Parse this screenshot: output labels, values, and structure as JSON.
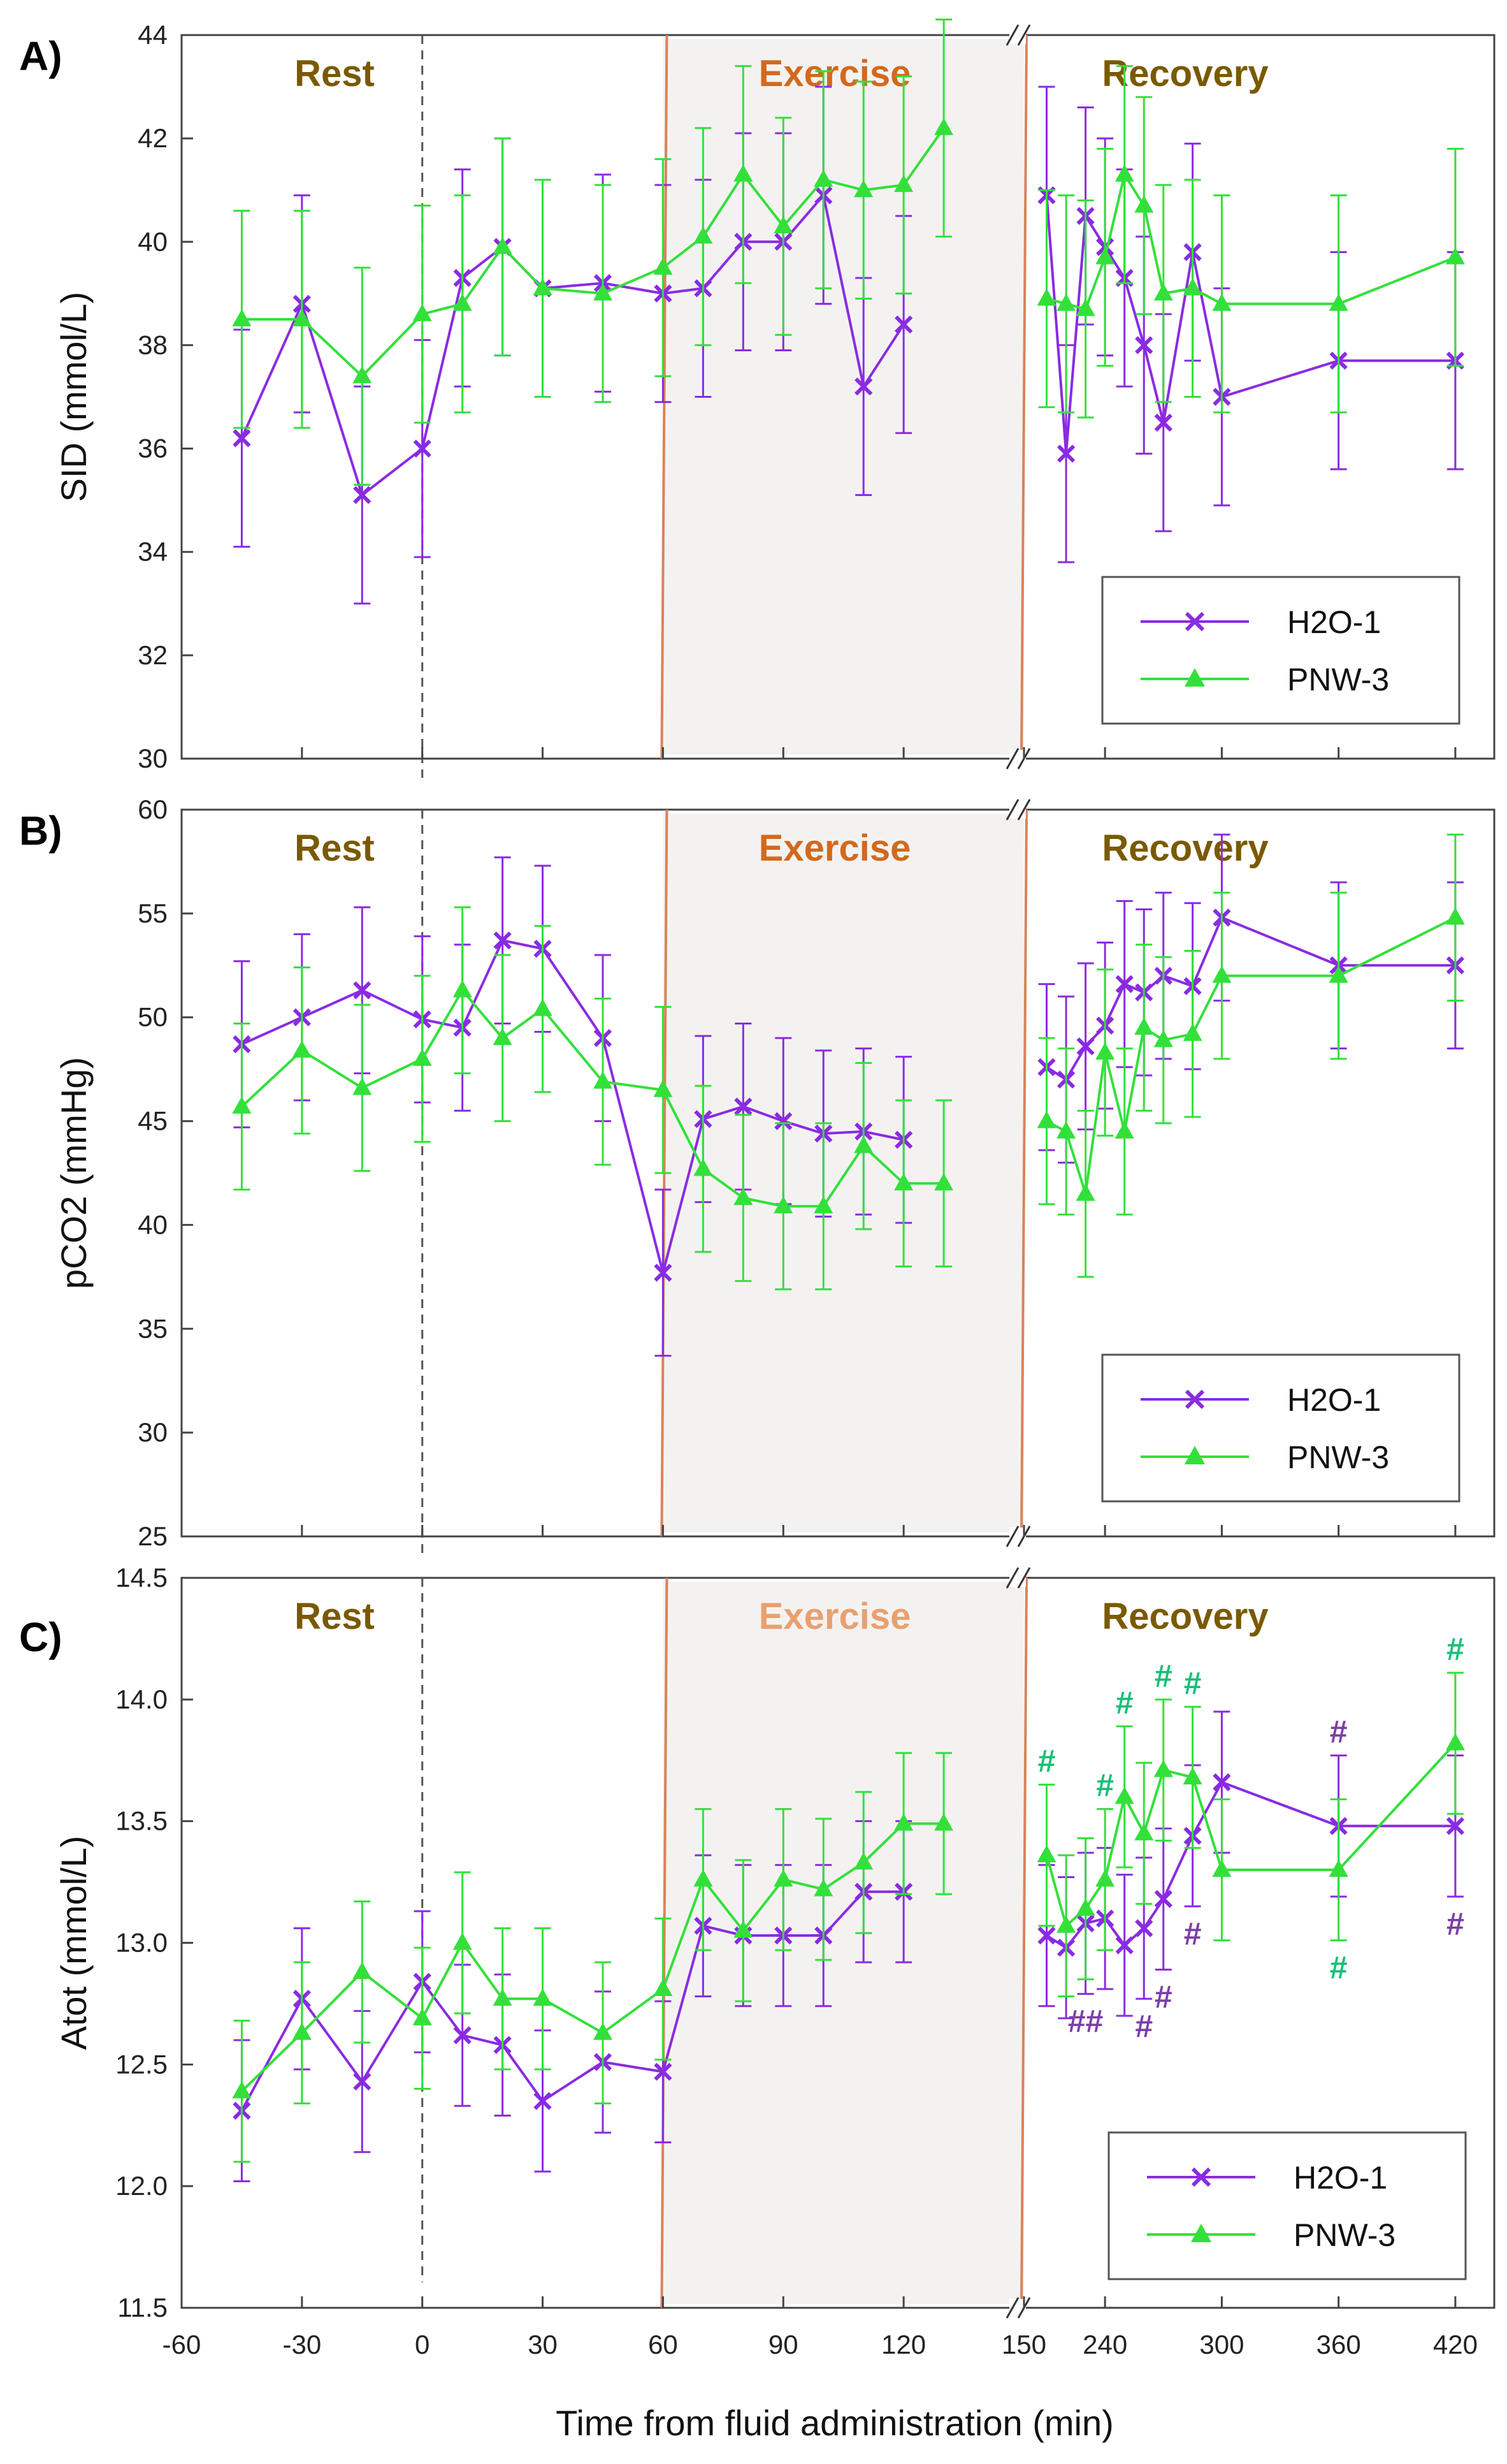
{
  "figure": {
    "xlabel": "Time from fluid administration (min)",
    "x_ticks": [
      "-60",
      "-30",
      "0",
      "30",
      "60",
      "90",
      "120",
      "150",
      "240",
      "300",
      "360",
      "420"
    ],
    "x_break_between": [
      150,
      240
    ]
  },
  "colors": {
    "h2o": "#8a2be2",
    "pnw": "#33e03a",
    "exercise_line": "#d9835a",
    "exercise_fill": "#f4f2f1",
    "rest_text": "#7a5a00",
    "exercise_text": "#d2691e",
    "exercise_text_c": "#e8a070",
    "recovery_text": "#7a5a00",
    "hash_pnw": "#1abf7a",
    "hash_h2o": "#7b3fa6"
  },
  "chart_data": [
    {
      "panel": "A)",
      "type": "line",
      "ylabel": "SID (mmol/L)",
      "ylim": [
        30,
        44
      ],
      "yticks": [
        "30",
        "32",
        "34",
        "36",
        "38",
        "40",
        "42",
        "44"
      ],
      "phases": [
        "Rest",
        "Exercise",
        "Recovery"
      ],
      "legend": {
        "position": "bottom-right",
        "entries": [
          "H2O-1",
          "PNW-3"
        ]
      },
      "series": [
        {
          "name": "H2O-1",
          "marker": "x",
          "x": [
            -45,
            -30,
            -15,
            0,
            10,
            20,
            30,
            45,
            60,
            70,
            80,
            90,
            100,
            110,
            120,
            210,
            220,
            230,
            240,
            250,
            260,
            270,
            285,
            300,
            360,
            420
          ],
          "y": [
            36.2,
            38.8,
            35.1,
            36.0,
            39.3,
            39.9,
            39.1,
            39.2,
            39.0,
            39.1,
            40.0,
            40.0,
            40.9,
            37.2,
            38.4,
            40.9,
            35.9,
            40.5,
            39.9,
            39.3,
            38.0,
            36.5,
            39.8,
            37.0,
            37.7,
            37.7
          ],
          "err": [
            2.1,
            2.1,
            2.1,
            2.1,
            2.1,
            2.1,
            2.1,
            2.1,
            2.1,
            2.1,
            2.1,
            2.1,
            2.1,
            2.1,
            2.1,
            2.1,
            2.1,
            2.1,
            2.1,
            2.1,
            2.1,
            2.1,
            2.1,
            2.1,
            2.1,
            2.1
          ]
        },
        {
          "name": "PNW-3",
          "marker": "triangle",
          "x": [
            -45,
            -30,
            -15,
            0,
            10,
            20,
            30,
            45,
            60,
            70,
            80,
            90,
            100,
            110,
            120,
            130,
            210,
            220,
            230,
            240,
            250,
            260,
            270,
            285,
            300,
            360,
            420
          ],
          "y": [
            38.5,
            38.5,
            37.4,
            38.6,
            38.8,
            39.9,
            39.1,
            39.0,
            39.5,
            40.1,
            41.3,
            40.3,
            41.2,
            41.0,
            41.1,
            42.2,
            38.9,
            38.8,
            38.7,
            39.7,
            41.3,
            40.7,
            39.0,
            39.1,
            38.8,
            38.8,
            39.7
          ],
          "err": [
            2.1,
            2.1,
            2.1,
            2.1,
            2.1,
            2.1,
            2.1,
            2.1,
            2.1,
            2.1,
            2.1,
            2.1,
            2.1,
            2.1,
            2.1,
            2.1,
            2.1,
            2.1,
            2.1,
            2.1,
            2.1,
            2.1,
            2.1,
            2.1,
            2.1,
            2.1,
            2.1
          ]
        }
      ]
    },
    {
      "panel": "B)",
      "type": "line",
      "ylabel": "pCO2 (mmHg)",
      "ylim": [
        25,
        60
      ],
      "yticks": [
        "25",
        "30",
        "35",
        "40",
        "45",
        "50",
        "55",
        "60"
      ],
      "phases": [
        "Rest",
        "Exercise",
        "Recovery"
      ],
      "legend": {
        "position": "bottom-right",
        "entries": [
          "H2O-1",
          "PNW-3"
        ]
      },
      "series": [
        {
          "name": "H2O-1",
          "marker": "x",
          "x": [
            -45,
            -30,
            -15,
            0,
            10,
            20,
            30,
            45,
            60,
            70,
            80,
            90,
            100,
            110,
            120,
            210,
            220,
            230,
            240,
            250,
            260,
            270,
            285,
            300,
            360,
            420
          ],
          "y": [
            48.7,
            50.0,
            51.3,
            49.9,
            49.5,
            53.7,
            53.3,
            49.0,
            37.7,
            45.1,
            45.7,
            45.0,
            44.4,
            44.5,
            44.1,
            47.6,
            47.0,
            48.6,
            49.6,
            51.6,
            51.2,
            52.0,
            51.5,
            54.8,
            52.5,
            52.5
          ],
          "err": [
            4.0,
            4.0,
            4.0,
            4.0,
            4.0,
            4.0,
            4.0,
            4.0,
            4.0,
            4.0,
            4.0,
            4.0,
            4.0,
            4.0,
            4.0,
            4.0,
            4.0,
            4.0,
            4.0,
            4.0,
            4.0,
            4.0,
            4.0,
            4.0,
            4.0,
            4.0
          ]
        },
        {
          "name": "PNW-3",
          "marker": "triangle",
          "x": [
            -45,
            -30,
            -15,
            0,
            10,
            20,
            30,
            45,
            60,
            70,
            80,
            90,
            100,
            110,
            120,
            130,
            210,
            220,
            230,
            240,
            250,
            260,
            270,
            285,
            300,
            360,
            420
          ],
          "y": [
            45.7,
            48.4,
            46.6,
            48.0,
            51.3,
            49.0,
            50.4,
            46.9,
            46.5,
            42.7,
            41.3,
            40.9,
            40.9,
            43.8,
            42.0,
            42.0,
            45.0,
            44.5,
            41.5,
            48.3,
            44.5,
            49.5,
            48.9,
            49.2,
            52.0,
            52.0,
            54.8
          ],
          "err": [
            4.0,
            4.0,
            4.0,
            4.0,
            4.0,
            4.0,
            4.0,
            4.0,
            4.0,
            4.0,
            4.0,
            4.0,
            4.0,
            4.0,
            4.0,
            4.0,
            4.0,
            4.0,
            4.0,
            4.0,
            4.0,
            4.0,
            4.0,
            4.0,
            4.0,
            4.0,
            4.0
          ]
        }
      ]
    },
    {
      "panel": "C)",
      "type": "line",
      "ylabel": "Atot (mmol/L)",
      "ylim": [
        11.5,
        14.5
      ],
      "yticks": [
        "11.5",
        "12.0",
        "12.5",
        "13.0",
        "13.5",
        "14.0",
        "14.5"
      ],
      "phases": [
        "Rest",
        "Exercise",
        "Recovery"
      ],
      "legend": {
        "position": "bottom-right",
        "entries": [
          "H2O-1",
          "PNW-3"
        ]
      },
      "series": [
        {
          "name": "H2O-1",
          "marker": "x",
          "x": [
            -45,
            -30,
            -15,
            0,
            10,
            20,
            30,
            45,
            60,
            70,
            80,
            90,
            100,
            110,
            120,
            210,
            220,
            230,
            240,
            250,
            260,
            270,
            285,
            300,
            360,
            420
          ],
          "y": [
            12.31,
            12.77,
            12.43,
            12.84,
            12.62,
            12.58,
            12.35,
            12.51,
            12.47,
            13.07,
            13.03,
            13.03,
            13.03,
            13.21,
            13.21,
            13.03,
            12.98,
            13.08,
            13.1,
            12.99,
            13.06,
            13.18,
            13.44,
            13.66,
            13.48,
            13.48
          ],
          "err": [
            0.29,
            0.29,
            0.29,
            0.29,
            0.29,
            0.29,
            0.29,
            0.29,
            0.29,
            0.29,
            0.29,
            0.29,
            0.29,
            0.29,
            0.29,
            0.29,
            0.29,
            0.29,
            0.29,
            0.29,
            0.29,
            0.29,
            0.29,
            0.29,
            0.29,
            0.29
          ]
        },
        {
          "name": "PNW-3",
          "marker": "triangle",
          "x": [
            -45,
            -30,
            -15,
            0,
            10,
            20,
            30,
            45,
            60,
            70,
            80,
            90,
            100,
            110,
            120,
            130,
            210,
            220,
            230,
            240,
            250,
            260,
            270,
            285,
            300,
            360,
            420
          ],
          "y": [
            12.39,
            12.63,
            12.88,
            12.69,
            13.0,
            12.77,
            12.77,
            12.63,
            12.81,
            13.26,
            13.05,
            13.26,
            13.22,
            13.33,
            13.49,
            13.49,
            13.36,
            13.07,
            13.14,
            13.26,
            13.6,
            13.45,
            13.71,
            13.68,
            13.3,
            13.3,
            13.82
          ],
          "err": [
            0.29,
            0.29,
            0.29,
            0.29,
            0.29,
            0.29,
            0.29,
            0.29,
            0.29,
            0.29,
            0.29,
            0.29,
            0.29,
            0.29,
            0.29,
            0.29,
            0.29,
            0.29,
            0.29,
            0.29,
            0.29,
            0.29,
            0.29,
            0.29,
            0.29,
            0.29,
            0.29
          ]
        }
      ],
      "annotations": [
        {
          "text": "#",
          "series": "PNW-3",
          "x": 210,
          "where": "above"
        },
        {
          "text": "#",
          "series": "PNW-3",
          "x": 240,
          "where": "above"
        },
        {
          "text": "#",
          "series": "PNW-3",
          "x": 250,
          "where": "above"
        },
        {
          "text": "#",
          "series": "PNW-3",
          "x": 270,
          "where": "above"
        },
        {
          "text": "#",
          "series": "PNW-3",
          "x": 285,
          "where": "above"
        },
        {
          "text": "#",
          "series": "PNW-3",
          "x": 360,
          "where": "below"
        },
        {
          "text": "#",
          "series": "PNW-3",
          "x": 420,
          "where": "above"
        },
        {
          "text": "##",
          "series": "H2O-1",
          "x": 230,
          "where": "below"
        },
        {
          "text": "#",
          "series": "H2O-1",
          "x": 260,
          "where": "below"
        },
        {
          "text": "#",
          "series": "H2O-1",
          "x": 270,
          "where": "below"
        },
        {
          "text": "#",
          "series": "H2O-1",
          "x": 285,
          "where": "below"
        },
        {
          "text": "#",
          "series": "H2O-1",
          "x": 360,
          "where": "above"
        },
        {
          "text": "#",
          "series": "H2O-1",
          "x": 420,
          "where": "below"
        }
      ]
    }
  ]
}
